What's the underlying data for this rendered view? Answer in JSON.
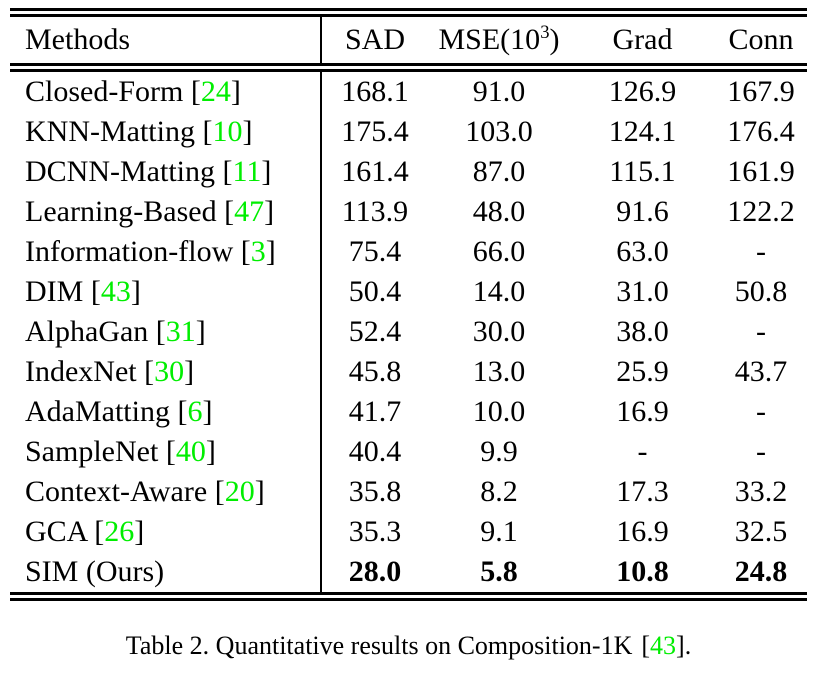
{
  "accent": {
    "citation_green": "#00ee00",
    "text_color": "#000000",
    "rule_color": "#000000"
  },
  "symbols": {
    "bracket_open": "[",
    "bracket_close": "]"
  },
  "table": {
    "header": {
      "methods": "Methods",
      "sad": "SAD",
      "mse_prefix": "MSE(10",
      "mse_sup": "3",
      "mse_suffix": ")",
      "grad": "Grad",
      "conn": "Conn"
    },
    "rows": [
      {
        "method": "Closed-Form",
        "cite": "24",
        "sad": "168.1",
        "mse": "91.0",
        "grad": "126.9",
        "conn": "167.9",
        "bold": false
      },
      {
        "method": "KNN-Matting",
        "cite": "10",
        "sad": "175.4",
        "mse": "103.0",
        "grad": "124.1",
        "conn": "176.4",
        "bold": false
      },
      {
        "method": "DCNN-Matting",
        "cite": "11",
        "sad": "161.4",
        "mse": "87.0",
        "grad": "115.1",
        "conn": "161.9",
        "bold": false
      },
      {
        "method": "Learning-Based",
        "cite": "47",
        "sad": "113.9",
        "mse": "48.0",
        "grad": "91.6",
        "conn": "122.2",
        "bold": false
      },
      {
        "method": "Information-flow",
        "cite": "3",
        "sad": "75.4",
        "mse": "66.0",
        "grad": "63.0",
        "conn": "-",
        "bold": false
      },
      {
        "method": "DIM",
        "cite": "43",
        "sad": "50.4",
        "mse": "14.0",
        "grad": "31.0",
        "conn": "50.8",
        "bold": false
      },
      {
        "method": "AlphaGan",
        "cite": "31",
        "sad": "52.4",
        "mse": "30.0",
        "grad": "38.0",
        "conn": "-",
        "bold": false
      },
      {
        "method": "IndexNet",
        "cite": "30",
        "sad": "45.8",
        "mse": "13.0",
        "grad": "25.9",
        "conn": "43.7",
        "bold": false
      },
      {
        "method": "AdaMatting",
        "cite": "6",
        "sad": "41.7",
        "mse": "10.0",
        "grad": "16.9",
        "conn": "-",
        "bold": false
      },
      {
        "method": "SampleNet",
        "cite": "40",
        "sad": "40.4",
        "mse": "9.9",
        "grad": "-",
        "conn": "-",
        "bold": false
      },
      {
        "method": "Context-Aware",
        "cite": "20",
        "sad": "35.8",
        "mse": "8.2",
        "grad": "17.3",
        "conn": "33.2",
        "bold": false
      },
      {
        "method": "GCA",
        "cite": "26",
        "sad": "35.3",
        "mse": "9.1",
        "grad": "16.9",
        "conn": "32.5",
        "bold": false
      },
      {
        "method": "SIM (Ours)",
        "cite": null,
        "sad": "28.0",
        "mse": "5.8",
        "grad": "10.8",
        "conn": "24.8",
        "bold": true
      }
    ]
  },
  "caption": {
    "prefix": "Table 2. Quantitative results on Composition-1K",
    "cite": "43",
    "suffix": "."
  }
}
